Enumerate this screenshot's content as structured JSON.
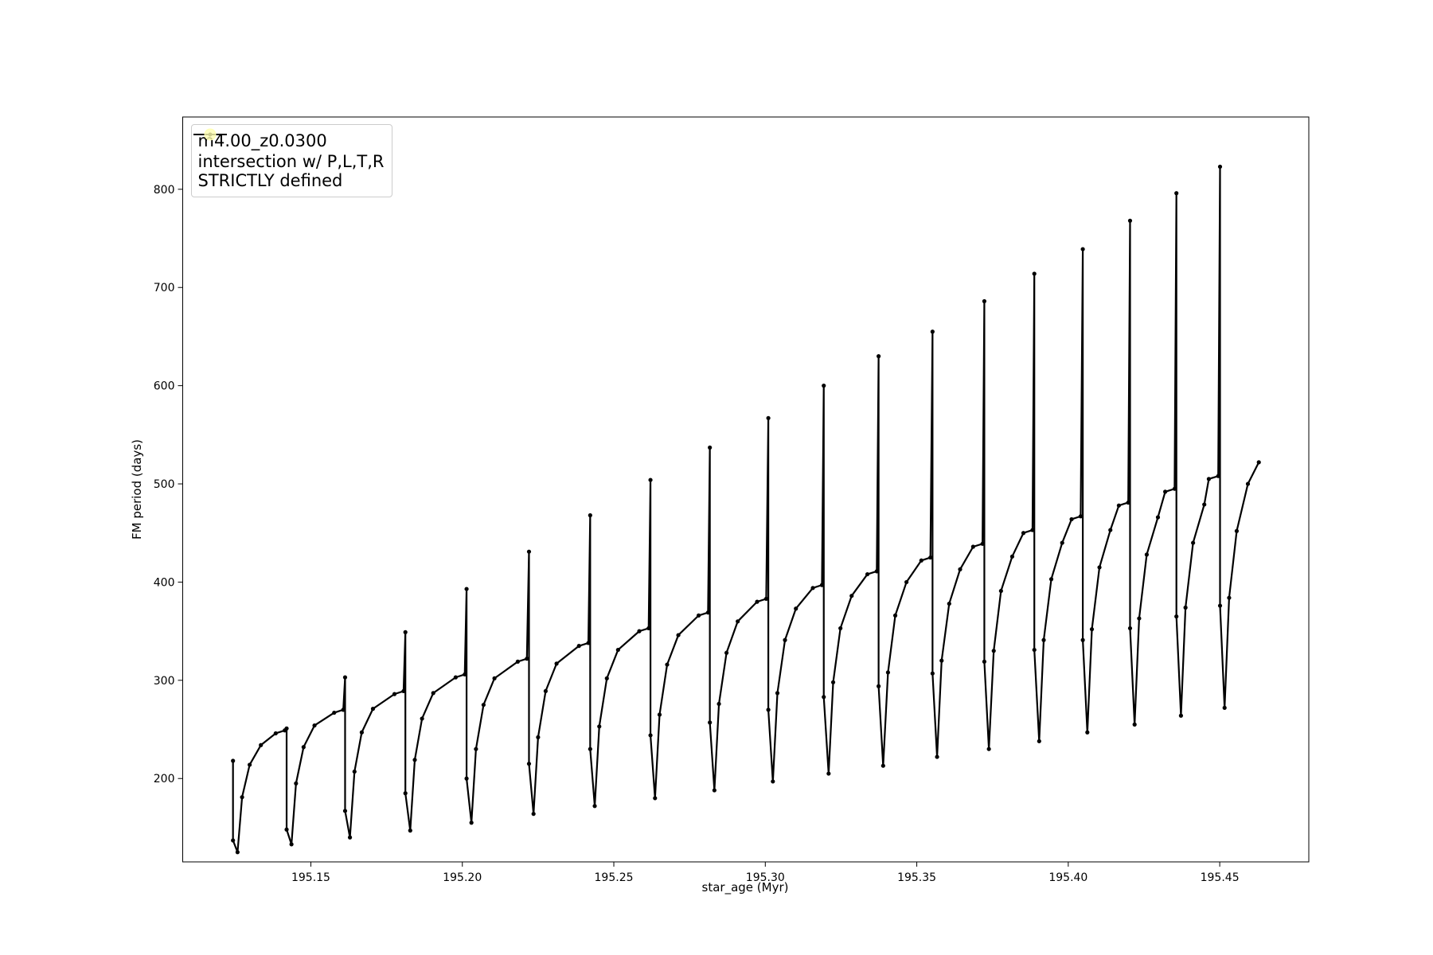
{
  "chart_data": {
    "type": "line",
    "xlabel": "star_age (Myr)",
    "ylabel": "FM period (days)",
    "xlim": [
      195.1077,
      195.4794
    ],
    "ylim": [
      115.1,
      873.6
    ],
    "xticks": [
      195.15,
      {
        "value": 195.2,
        "label": "195.20"
      },
      195.25,
      {
        "value": 195.3,
        "label": "195.30"
      },
      195.35,
      {
        "value": 195.4,
        "label": "195.40"
      },
      195.45
    ],
    "yticks": [
      200,
      300,
      400,
      500,
      600,
      700,
      800
    ],
    "grid": false,
    "legend": "upper left",
    "series": [
      {
        "name": "m4.00_z0.0300",
        "color": "#000000",
        "x": [
          195.1243,
          195.1243,
          195.1258,
          195.1273,
          195.1298,
          195.1335,
          195.1384,
          195.1414,
          195.142,
          195.142,
          195.1436,
          195.1451,
          195.1476,
          195.1512,
          195.1577,
          195.1607,
          195.1613,
          195.1613,
          195.1629,
          195.1644,
          195.1668,
          195.1705,
          195.1776,
          195.1806,
          195.1812,
          195.1812,
          195.1828,
          195.1843,
          195.1867,
          195.1904,
          195.1978,
          195.2008,
          195.2014,
          195.2014,
          195.203,
          195.2045,
          195.207,
          195.2106,
          195.2183,
          195.2213,
          195.222,
          195.222,
          195.2235,
          195.225,
          195.2275,
          195.2311,
          195.2385,
          195.2416,
          195.2422,
          195.2422,
          195.2437,
          195.2452,
          195.2477,
          195.2514,
          195.2584,
          195.2615,
          195.2621,
          195.2621,
          195.2636,
          195.2651,
          195.2676,
          195.2713,
          195.278,
          195.2811,
          195.2817,
          195.2817,
          195.2832,
          195.2847,
          195.2872,
          195.2909,
          195.2973,
          195.3003,
          195.301,
          195.301,
          195.3025,
          195.304,
          195.3065,
          195.3101,
          195.3157,
          195.3187,
          195.3193,
          195.3193,
          195.3209,
          195.3224,
          195.3248,
          195.3285,
          195.3337,
          195.3368,
          195.3374,
          195.3374,
          195.3389,
          195.3405,
          195.3429,
          195.3466,
          195.3515,
          195.3545,
          195.3552,
          195.3552,
          195.3567,
          195.3582,
          195.3607,
          195.3643,
          195.3686,
          195.3717,
          195.3723,
          195.3723,
          195.3738,
          195.3754,
          195.3778,
          195.3815,
          195.3852,
          195.3882,
          195.3888,
          195.3888,
          195.3904,
          195.3919,
          195.3944,
          195.398,
          195.4011,
          195.4041,
          195.4048,
          195.4048,
          195.4063,
          195.4078,
          195.4103,
          195.4139,
          195.4167,
          195.4198,
          195.4204,
          195.4204,
          195.4219,
          195.4234,
          195.4259,
          195.4296,
          195.432,
          195.4351,
          195.4357,
          195.4357,
          195.4372,
          195.4387,
          195.4412,
          195.4449,
          195.4464,
          195.4495,
          195.4501,
          195.4501,
          195.4516,
          195.4531,
          195.4556,
          195.4593,
          195.4629
        ],
        "values": [
          218,
          137,
          125,
          181,
          214,
          234,
          246,
          249,
          251,
          148,
          133,
          195,
          232,
          254,
          267,
          270,
          303,
          167,
          140,
          207,
          247,
          271,
          286,
          289,
          349,
          185,
          147,
          219,
          261,
          287,
          303,
          306,
          393,
          200,
          155,
          230,
          275,
          302,
          319,
          322,
          431,
          215,
          164,
          242,
          289,
          317,
          335,
          338,
          468,
          230,
          172,
          253,
          302,
          331,
          350,
          353,
          504,
          244,
          180,
          265,
          316,
          346,
          366,
          369,
          537,
          257,
          188,
          276,
          328,
          360,
          380,
          383,
          567,
          270,
          197,
          287,
          341,
          373,
          394,
          397,
          600,
          283,
          205,
          298,
          353,
          386,
          408,
          411,
          630,
          294,
          213,
          308,
          366,
          400,
          422,
          425,
          655,
          307,
          222,
          320,
          378,
          413,
          436,
          439,
          686,
          319,
          230,
          330,
          391,
          426,
          450,
          453,
          714,
          331,
          238,
          341,
          403,
          440,
          464,
          467,
          739,
          341,
          247,
          352,
          415,
          453,
          478,
          481,
          768,
          353,
          255,
          363,
          428,
          466,
          492,
          495,
          796,
          365,
          264,
          374,
          440,
          479,
          505,
          508,
          823,
          376,
          272,
          384,
          452,
          500,
          522
        ]
      },
      {
        "name": "intersection w/ P,L,T,R\nSTRICTLY defined",
        "color": "#ffffb2",
        "x": [],
        "values": []
      }
    ]
  }
}
